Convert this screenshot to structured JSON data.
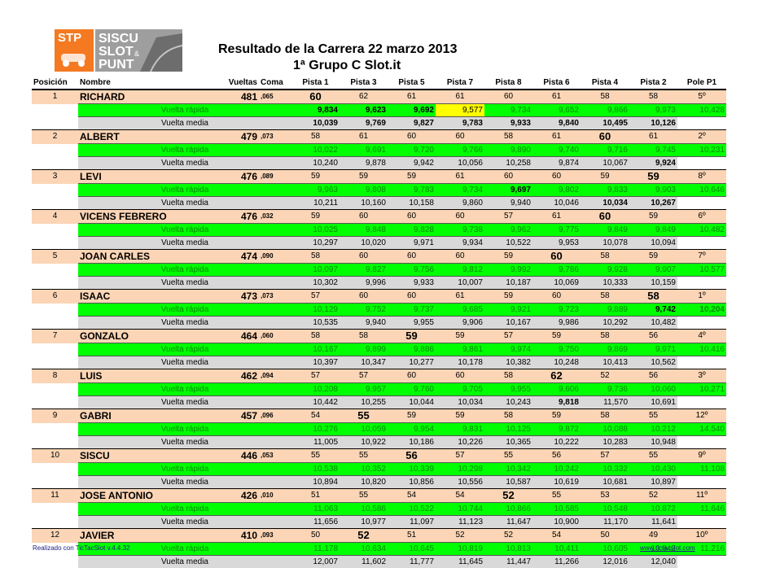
{
  "logo": {
    "stp": "STP",
    "line1": "SISCU",
    "line2": "SLOT",
    "line3": "PUNT",
    "amp": "&"
  },
  "title": {
    "line1": "Resultado de la Carrera  22 marzo 2013",
    "line2": "1ª Grupo C Slot.it"
  },
  "headers": [
    "Posición",
    "Nombre",
    "Vueltas",
    "Coma",
    "Pista 1",
    "Pista 3",
    "Pista 5",
    "Pista 7",
    "Pista 8",
    "Pista 6",
    "Pista 4",
    "Pista 2",
    "Pole P1"
  ],
  "labels": {
    "fast": "Vuelta rápida",
    "avg": "Vuelta media"
  },
  "footer": {
    "left": "Realizado con TicTacSlot v.4.4.32",
    "right": "www.tictacslot.com"
  },
  "results": [
    {
      "pos": "1",
      "name": "RICHARD",
      "laps": "481",
      "coma": ",065",
      "tracks": [
        "60",
        "62",
        "61",
        "61",
        "60",
        "61",
        "58",
        "58"
      ],
      "pole": "5º",
      "fast": [
        "9,834",
        "9,623",
        "9,692",
        "9,577",
        "9,734",
        "9,652",
        "9,866",
        "9,973"
      ],
      "fast_pole": "10,428",
      "avg": [
        "10,039",
        "9,769",
        "9,827",
        "9,783",
        "9,933",
        "9,840",
        "10,495",
        "10,126"
      ]
    },
    {
      "pos": "2",
      "name": "ALBERT",
      "laps": "479",
      "coma": ",073",
      "tracks": [
        "58",
        "61",
        "60",
        "60",
        "58",
        "61",
        "60",
        "61"
      ],
      "pole": "2º",
      "fast": [
        "10,022",
        "9,691",
        "9,720",
        "9,766",
        "9,890",
        "9,740",
        "9,716",
        "9,745"
      ],
      "fast_pole": "10,231",
      "avg": [
        "10,240",
        "9,878",
        "9,942",
        "10,056",
        "10,258",
        "9,874",
        "10,067",
        "9,924"
      ]
    },
    {
      "pos": "3",
      "name": "LEVI",
      "laps": "476",
      "coma": ",089",
      "tracks": [
        "59",
        "59",
        "59",
        "61",
        "60",
        "60",
        "59",
        "59"
      ],
      "pole": "8º",
      "fast": [
        "9,963",
        "9,808",
        "9,783",
        "9,734",
        "9,697",
        "9,802",
        "9,833",
        "9,903"
      ],
      "fast_pole": "10,646",
      "avg": [
        "10,211",
        "10,160",
        "10,158",
        "9,860",
        "9,940",
        "10,046",
        "10,034",
        "10,267"
      ]
    },
    {
      "pos": "4",
      "name": "VICENS FEBRERO",
      "laps": "476",
      "coma": ",032",
      "tracks": [
        "59",
        "60",
        "60",
        "60",
        "57",
        "61",
        "60",
        "59"
      ],
      "pole": "6º",
      "fast": [
        "10,025",
        "9,848",
        "9,828",
        "9,738",
        "9,962",
        "9,775",
        "9,849",
        "9,849"
      ],
      "fast_pole": "10,482",
      "avg": [
        "10,297",
        "10,020",
        "9,971",
        "9,934",
        "10,522",
        "9,953",
        "10,078",
        "10,094"
      ]
    },
    {
      "pos": "5",
      "name": "JOAN CARLES",
      "laps": "474",
      "coma": ",090",
      "tracks": [
        "58",
        "60",
        "60",
        "60",
        "59",
        "60",
        "58",
        "59"
      ],
      "pole": "7º",
      "fast": [
        "10,097",
        "9,827",
        "9,756",
        "9,812",
        "9,992",
        "9,786",
        "9,928",
        "9,907"
      ],
      "fast_pole": "10,577",
      "avg": [
        "10,302",
        "9,996",
        "9,933",
        "10,007",
        "10,187",
        "10,069",
        "10,333",
        "10,159"
      ]
    },
    {
      "pos": "6",
      "name": "ISAAC",
      "laps": "473",
      "coma": ",073",
      "tracks": [
        "57",
        "60",
        "60",
        "61",
        "59",
        "60",
        "58",
        "58"
      ],
      "pole": "1º",
      "fast": [
        "10,129",
        "9,752",
        "9,737",
        "9,685",
        "9,921",
        "9,723",
        "9,889",
        "9,742"
      ],
      "fast_pole": "10,204",
      "avg": [
        "10,535",
        "9,940",
        "9,955",
        "9,906",
        "10,167",
        "9,986",
        "10,292",
        "10,482"
      ]
    },
    {
      "pos": "7",
      "name": "GONZALO",
      "laps": "464",
      "coma": ",060",
      "tracks": [
        "58",
        "58",
        "59",
        "59",
        "57",
        "59",
        "58",
        "56"
      ],
      "pole": "4º",
      "fast": [
        "10,167",
        "9,899",
        "9,886",
        "9,861",
        "9,974",
        "9,750",
        "9,869",
        "9,971"
      ],
      "fast_pole": "10,416",
      "avg": [
        "10,397",
        "10,347",
        "10,277",
        "10,178",
        "10,382",
        "10,248",
        "10,413",
        "10,562"
      ]
    },
    {
      "pos": "8",
      "name": "LUIS",
      "laps": "462",
      "coma": ",094",
      "tracks": [
        "57",
        "57",
        "60",
        "60",
        "58",
        "62",
        "52",
        "56"
      ],
      "pole": "3º",
      "fast": [
        "10,208",
        "9,957",
        "9,760",
        "9,705",
        "9,955",
        "9,606",
        "9,736",
        "10,060"
      ],
      "fast_pole": "10,271",
      "avg": [
        "10,442",
        "10,255",
        "10,044",
        "10,034",
        "10,243",
        "9,818",
        "11,570",
        "10,691"
      ]
    },
    {
      "pos": "9",
      "name": "GABRI",
      "laps": "457",
      "coma": ",096",
      "tracks": [
        "54",
        "55",
        "59",
        "59",
        "58",
        "59",
        "58",
        "55"
      ],
      "pole": "12º",
      "fast": [
        "10,276",
        "10,059",
        "9,954",
        "9,831",
        "10,125",
        "9,872",
        "10,088",
        "10,212"
      ],
      "fast_pole": "14,540",
      "avg": [
        "11,005",
        "10,922",
        "10,186",
        "10,226",
        "10,365",
        "10,222",
        "10,283",
        "10,948"
      ]
    },
    {
      "pos": "10",
      "name": "SISCU",
      "laps": "446",
      "coma": ",053",
      "tracks": [
        "55",
        "55",
        "56",
        "57",
        "55",
        "56",
        "57",
        "55"
      ],
      "pole": "9º",
      "fast": [
        "10,538",
        "10,352",
        "10,339",
        "10,298",
        "10,342",
        "10,242",
        "10,332",
        "10,430"
      ],
      "fast_pole": "11,108",
      "avg": [
        "10,894",
        "10,820",
        "10,856",
        "10,556",
        "10,587",
        "10,619",
        "10,681",
        "10,897"
      ]
    },
    {
      "pos": "11",
      "name": "JOSE ANTONIO",
      "laps": "426",
      "coma": ",010",
      "tracks": [
        "51",
        "55",
        "54",
        "54",
        "52",
        "55",
        "53",
        "52"
      ],
      "pole": "11º",
      "fast": [
        "11,063",
        "10,586",
        "10,522",
        "10,744",
        "10,866",
        "10,585",
        "10,548",
        "10,872"
      ],
      "fast_pole": "11,646",
      "avg": [
        "11,656",
        "10,977",
        "11,097",
        "11,123",
        "11,647",
        "10,900",
        "11,170",
        "11,641"
      ]
    },
    {
      "pos": "12",
      "name": "JAVIER",
      "laps": "410",
      "coma": ",093",
      "tracks": [
        "50",
        "52",
        "51",
        "52",
        "52",
        "54",
        "50",
        "49"
      ],
      "pole": "10º",
      "fast": [
        "11,178",
        "10,634",
        "10,645",
        "10,819",
        "10,813",
        "10,411",
        "10,605",
        "10,842"
      ],
      "fast_pole": "11,216",
      "avg": [
        "12,007",
        "11,602",
        "11,777",
        "11,645",
        "11,447",
        "11,266",
        "12,016",
        "12,040"
      ]
    }
  ]
}
